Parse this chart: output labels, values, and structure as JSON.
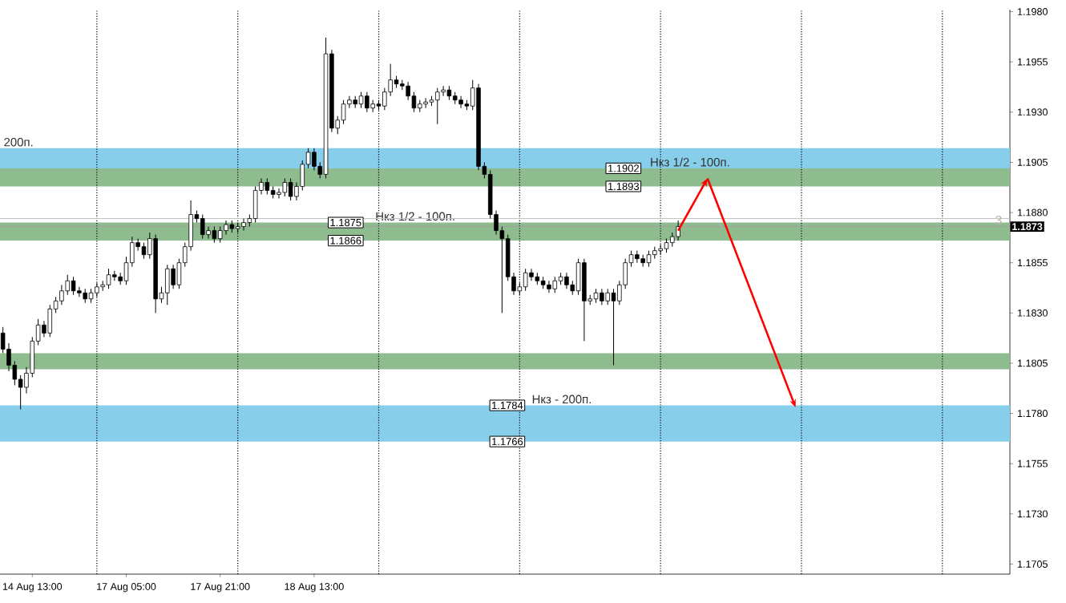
{
  "chart_data": {
    "type": "candlestick",
    "categories": [
      null,
      null,
      null,
      null,
      null,
      "14 Aug 13:00",
      null,
      null,
      null,
      null,
      null,
      null,
      null,
      null,
      null,
      null,
      null,
      null,
      null,
      null,
      null,
      "17 Aug 05:00",
      null,
      null,
      null,
      null,
      null,
      null,
      null,
      null,
      null,
      null,
      null,
      null,
      null,
      null,
      null,
      "17 Aug 21:00",
      null,
      null,
      null,
      null,
      null,
      null,
      null,
      null,
      null,
      null,
      null,
      null,
      null,
      null,
      null,
      "18 Aug 13:00",
      null,
      null,
      null,
      null,
      null,
      null,
      null,
      null,
      null,
      null,
      null,
      null,
      null,
      null,
      null,
      null,
      null,
      null,
      null,
      null,
      null,
      null,
      null,
      null,
      null,
      null,
      null,
      null,
      null,
      null,
      null,
      null,
      null,
      null,
      null,
      null,
      null,
      null,
      null,
      null,
      null,
      null,
      null,
      null,
      null,
      null,
      null,
      null,
      null,
      null,
      null,
      null,
      null,
      null,
      null,
      null,
      null,
      null,
      null,
      null,
      null,
      null,
      null,
      null,
      null,
      null,
      null,
      null,
      null,
      null,
      null,
      null,
      null,
      null,
      null,
      null,
      null,
      null,
      null,
      null,
      null,
      null,
      null,
      null,
      null,
      null,
      null,
      null,
      null,
      null,
      null,
      null,
      null,
      null,
      null,
      null,
      null,
      null,
      null,
      null,
      null,
      null,
      null,
      null,
      null,
      null,
      null,
      null,
      null,
      null,
      null,
      null,
      null,
      null,
      null,
      null,
      null,
      null
    ],
    "ohlc": [
      [
        1.182,
        1.1823,
        1.181,
        1.1812
      ],
      [
        1.1812,
        1.1815,
        1.1801,
        1.1804
      ],
      [
        1.1804,
        1.1806,
        1.1794,
        1.1797
      ],
      [
        1.1797,
        1.1799,
        1.1782,
        1.1793
      ],
      [
        1.1793,
        1.1803,
        1.179,
        1.18
      ],
      [
        1.18,
        1.1818,
        1.1798,
        1.1816
      ],
      [
        1.1816,
        1.1827,
        1.1814,
        1.1824
      ],
      [
        1.1824,
        1.1826,
        1.1818,
        1.182
      ],
      [
        1.182,
        1.1834,
        1.1818,
        1.1832
      ],
      [
        1.1832,
        1.1838,
        1.183,
        1.1836
      ],
      [
        1.1836,
        1.1844,
        1.1834,
        1.1841
      ],
      [
        1.1841,
        1.1849,
        1.1839,
        1.1846
      ],
      [
        1.1846,
        1.1848,
        1.1839,
        1.1841
      ],
      [
        1.1841,
        1.1843,
        1.1838,
        1.184
      ],
      [
        1.184,
        1.1842,
        1.1835,
        1.1837
      ],
      [
        1.1837,
        1.1842,
        1.1835,
        1.184
      ],
      [
        1.184,
        1.1845,
        1.1838,
        1.1843
      ],
      [
        1.1843,
        1.1846,
        1.1841,
        1.1844
      ],
      [
        1.1844,
        1.1852,
        1.1842,
        1.1849
      ],
      [
        1.1849,
        1.1851,
        1.1846,
        1.1848
      ],
      [
        1.1848,
        1.185,
        1.1844,
        1.1846
      ],
      [
        1.1846,
        1.1858,
        1.1844,
        1.1855
      ],
      [
        1.1855,
        1.1868,
        1.1853,
        1.1865
      ],
      [
        1.1865,
        1.1867,
        1.1861,
        1.1863
      ],
      [
        1.1863,
        1.1865,
        1.1857,
        1.1859
      ],
      [
        1.1859,
        1.187,
        1.1857,
        1.1867
      ],
      [
        1.1867,
        1.1869,
        1.183,
        1.1837
      ],
      [
        1.1837,
        1.1843,
        1.1835,
        1.184
      ],
      [
        1.184,
        1.1854,
        1.1834,
        1.1852
      ],
      [
        1.1852,
        1.1854,
        1.1842,
        1.1844
      ],
      [
        1.1844,
        1.1857,
        1.1842,
        1.1855
      ],
      [
        1.1855,
        1.1865,
        1.1853,
        1.1863
      ],
      [
        1.1863,
        1.1886,
        1.1861,
        1.1879
      ],
      [
        1.1879,
        1.1881,
        1.1875,
        1.1877
      ],
      [
        1.1877,
        1.1879,
        1.1867,
        1.1869
      ],
      [
        1.1869,
        1.1873,
        1.1867,
        1.1871
      ],
      [
        1.1871,
        1.1873,
        1.1865,
        1.1867
      ],
      [
        1.1867,
        1.1873,
        1.1865,
        1.1871
      ],
      [
        1.1871,
        1.1876,
        1.1869,
        1.1874
      ],
      [
        1.1874,
        1.1876,
        1.187,
        1.1872
      ],
      [
        1.1872,
        1.1875,
        1.187,
        1.1873
      ],
      [
        1.1873,
        1.1877,
        1.1871,
        1.1875
      ],
      [
        1.1875,
        1.1879,
        1.1873,
        1.1877
      ],
      [
        1.1877,
        1.1893,
        1.1875,
        1.1891
      ],
      [
        1.1891,
        1.1897,
        1.1889,
        1.1895
      ],
      [
        1.1895,
        1.1897,
        1.1889,
        1.1891
      ],
      [
        1.1891,
        1.1893,
        1.1887,
        1.1889
      ],
      [
        1.1889,
        1.1892,
        1.1887,
        1.189
      ],
      [
        1.189,
        1.1897,
        1.1888,
        1.1895
      ],
      [
        1.1895,
        1.1897,
        1.1886,
        1.1888
      ],
      [
        1.1888,
        1.1895,
        1.1886,
        1.1893
      ],
      [
        1.1893,
        1.1906,
        1.1891,
        1.1904
      ],
      [
        1.1904,
        1.1912,
        1.1902,
        1.191
      ],
      [
        1.191,
        1.1912,
        1.1901,
        1.1903
      ],
      [
        1.1903,
        1.1905,
        1.1897,
        1.1899
      ],
      [
        1.1899,
        1.1967,
        1.1897,
        1.1959
      ],
      [
        1.1959,
        1.1961,
        1.192,
        1.1922
      ],
      [
        1.1922,
        1.1928,
        1.1919,
        1.1926
      ],
      [
        1.1926,
        1.1936,
        1.1924,
        1.1934
      ],
      [
        1.1934,
        1.1938,
        1.1932,
        1.1936
      ],
      [
        1.1936,
        1.1938,
        1.1932,
        1.1934
      ],
      [
        1.1934,
        1.194,
        1.1932,
        1.1938
      ],
      [
        1.1938,
        1.194,
        1.193,
        1.1932
      ],
      [
        1.1932,
        1.1936,
        1.193,
        1.1934
      ],
      [
        1.1934,
        1.1936,
        1.1931,
        1.1933
      ],
      [
        1.1933,
        1.1942,
        1.1931,
        1.194
      ],
      [
        1.194,
        1.1954,
        1.1938,
        1.1946
      ],
      [
        1.1946,
        1.1948,
        1.1942,
        1.1944
      ],
      [
        1.1944,
        1.1946,
        1.1941,
        1.1943
      ],
      [
        1.1943,
        1.1945,
        1.1936,
        1.1938
      ],
      [
        1.1938,
        1.194,
        1.193,
        1.1932
      ],
      [
        1.1932,
        1.1936,
        1.193,
        1.1934
      ],
      [
        1.1934,
        1.1937,
        1.1932,
        1.1935
      ],
      [
        1.1935,
        1.1938,
        1.1933,
        1.1936
      ],
      [
        1.1936,
        1.1942,
        1.1924,
        1.194
      ],
      [
        1.194,
        1.1943,
        1.1938,
        1.1941
      ],
      [
        1.1941,
        1.1943,
        1.1936,
        1.1938
      ],
      [
        1.1938,
        1.194,
        1.1934,
        1.1936
      ],
      [
        1.1936,
        1.1938,
        1.1932,
        1.1934
      ],
      [
        1.1934,
        1.1936,
        1.1931,
        1.1933
      ],
      [
        1.1933,
        1.1946,
        1.1931,
        1.1942
      ],
      [
        1.1942,
        1.1944,
        1.1901,
        1.1903
      ],
      [
        1.1903,
        1.1905,
        1.1897,
        1.1899
      ],
      [
        1.1899,
        1.1901,
        1.1877,
        1.1879
      ],
      [
        1.1879,
        1.1881,
        1.1869,
        1.1871
      ],
      [
        1.1871,
        1.1873,
        1.183,
        1.1867
      ],
      [
        1.1867,
        1.1869,
        1.1846,
        1.1848
      ],
      [
        1.1848,
        1.185,
        1.1839,
        1.1841
      ],
      [
        1.1841,
        1.1845,
        1.1839,
        1.1843
      ],
      [
        1.1843,
        1.1852,
        1.1841,
        1.185
      ],
      [
        1.185,
        1.1852,
        1.1846,
        1.1848
      ],
      [
        1.1848,
        1.185,
        1.1844,
        1.1846
      ],
      [
        1.1846,
        1.1848,
        1.1842,
        1.1844
      ],
      [
        1.1844,
        1.1846,
        1.184,
        1.1842
      ],
      [
        1.1842,
        1.1848,
        1.184,
        1.1846
      ],
      [
        1.1846,
        1.185,
        1.1844,
        1.1848
      ],
      [
        1.1848,
        1.185,
        1.1842,
        1.1844
      ],
      [
        1.1844,
        1.1846,
        1.1839,
        1.1841
      ],
      [
        1.1841,
        1.1857,
        1.1839,
        1.1855
      ],
      [
        1.1855,
        1.1857,
        1.1816,
        1.1836
      ],
      [
        1.1836,
        1.1839,
        1.1834,
        1.1837
      ],
      [
        1.1837,
        1.1842,
        1.1835,
        1.184
      ],
      [
        1.184,
        1.1842,
        1.1834,
        1.1836
      ],
      [
        1.1836,
        1.1842,
        1.1834,
        1.184
      ],
      [
        1.184,
        1.1842,
        1.1804,
        1.1836
      ],
      [
        1.1836,
        1.1846,
        1.1834,
        1.1844
      ],
      [
        1.1844,
        1.1857,
        1.1842,
        1.1855
      ],
      [
        1.1855,
        1.1861,
        1.1853,
        1.1859
      ],
      [
        1.1859,
        1.1861,
        1.1855,
        1.1857
      ],
      [
        1.1857,
        1.1859,
        1.1853,
        1.1855
      ],
      [
        1.1855,
        1.1861,
        1.1853,
        1.1859
      ],
      [
        1.1859,
        1.1863,
        1.1857,
        1.1861
      ],
      [
        1.1861,
        1.1864,
        1.1859,
        1.1862
      ],
      [
        1.1862,
        1.1867,
        1.186,
        1.1865
      ],
      [
        1.1865,
        1.187,
        1.1863,
        1.1868
      ],
      [
        1.1868,
        1.1876,
        1.1866,
        1.1873
      ],
      null,
      null,
      null,
      null,
      null,
      null,
      null,
      null,
      null,
      null,
      null,
      null,
      null,
      null,
      null,
      null,
      null,
      null,
      null,
      null,
      null,
      null,
      null,
      null,
      null,
      null,
      null,
      null,
      null,
      null,
      null,
      null,
      null,
      null,
      null,
      null,
      null,
      null,
      null,
      null,
      null,
      null,
      null,
      null,
      null,
      null,
      null,
      null,
      null,
      null,
      null,
      null,
      null,
      null,
      null,
      null
    ],
    "ylim": [
      1.17,
      1.1981
    ],
    "yticks": [
      1.1705,
      {
        "value": 1.173,
        "label": "1.1730"
      },
      1.1755,
      {
        "value": 1.178,
        "label": "1.1780"
      },
      1.1805,
      {
        "value": 1.183,
        "label": "1.1830"
      },
      1.1855,
      {
        "value": 1.188,
        "label": "1.1880"
      },
      1.1905,
      {
        "value": 1.193,
        "label": "1.1930"
      },
      1.1955,
      {
        "value": 1.198,
        "label": "1.1980"
      }
    ],
    "bands": [
      {
        "axis": "y",
        "from": 1.1894,
        "to": 1.1912,
        "label": "200п.",
        "color": "#87ceeb"
      },
      {
        "axis": "y",
        "from": 1.1802,
        "to": 1.181,
        "color": "#8fbc8f"
      },
      {
        "axis": "y",
        "from": 1.1866,
        "to": 1.1875,
        "label": "Нкз 1/2 - 100п.",
        "color": "#8fbc8f"
      },
      {
        "axis": "y",
        "from": 1.1893,
        "to": 1.1902,
        "label": "Нкз 1/2 - 100п.",
        "color": "#8fbc8f"
      },
      {
        "axis": "y",
        "from": 1.1766,
        "to": 1.1784,
        "label": "Нкз - 200п.",
        "color": "#87ceeb"
      }
    ],
    "ref_lines": [
      {
        "axis": "y",
        "value": 1.1873,
        "label": "1.1873",
        "color": "#a0a0a0"
      },
      {
        "axis": "y",
        "value": 1.1877,
        "color": "#c0c0c0"
      }
    ],
    "annotations": [
      "3",
      {
        "text": "1.1875",
        "y": 1.1875
      },
      {
        "text": "1.1866",
        "y": 1.1866
      },
      {
        "text": "1.1902",
        "y": 1.1902
      },
      {
        "text": "1.1893",
        "y": 1.1893
      },
      {
        "text": "1.1784",
        "y": 1.1784
      },
      {
        "text": "1.1766",
        "y": 1.1766
      }
    ]
  }
}
